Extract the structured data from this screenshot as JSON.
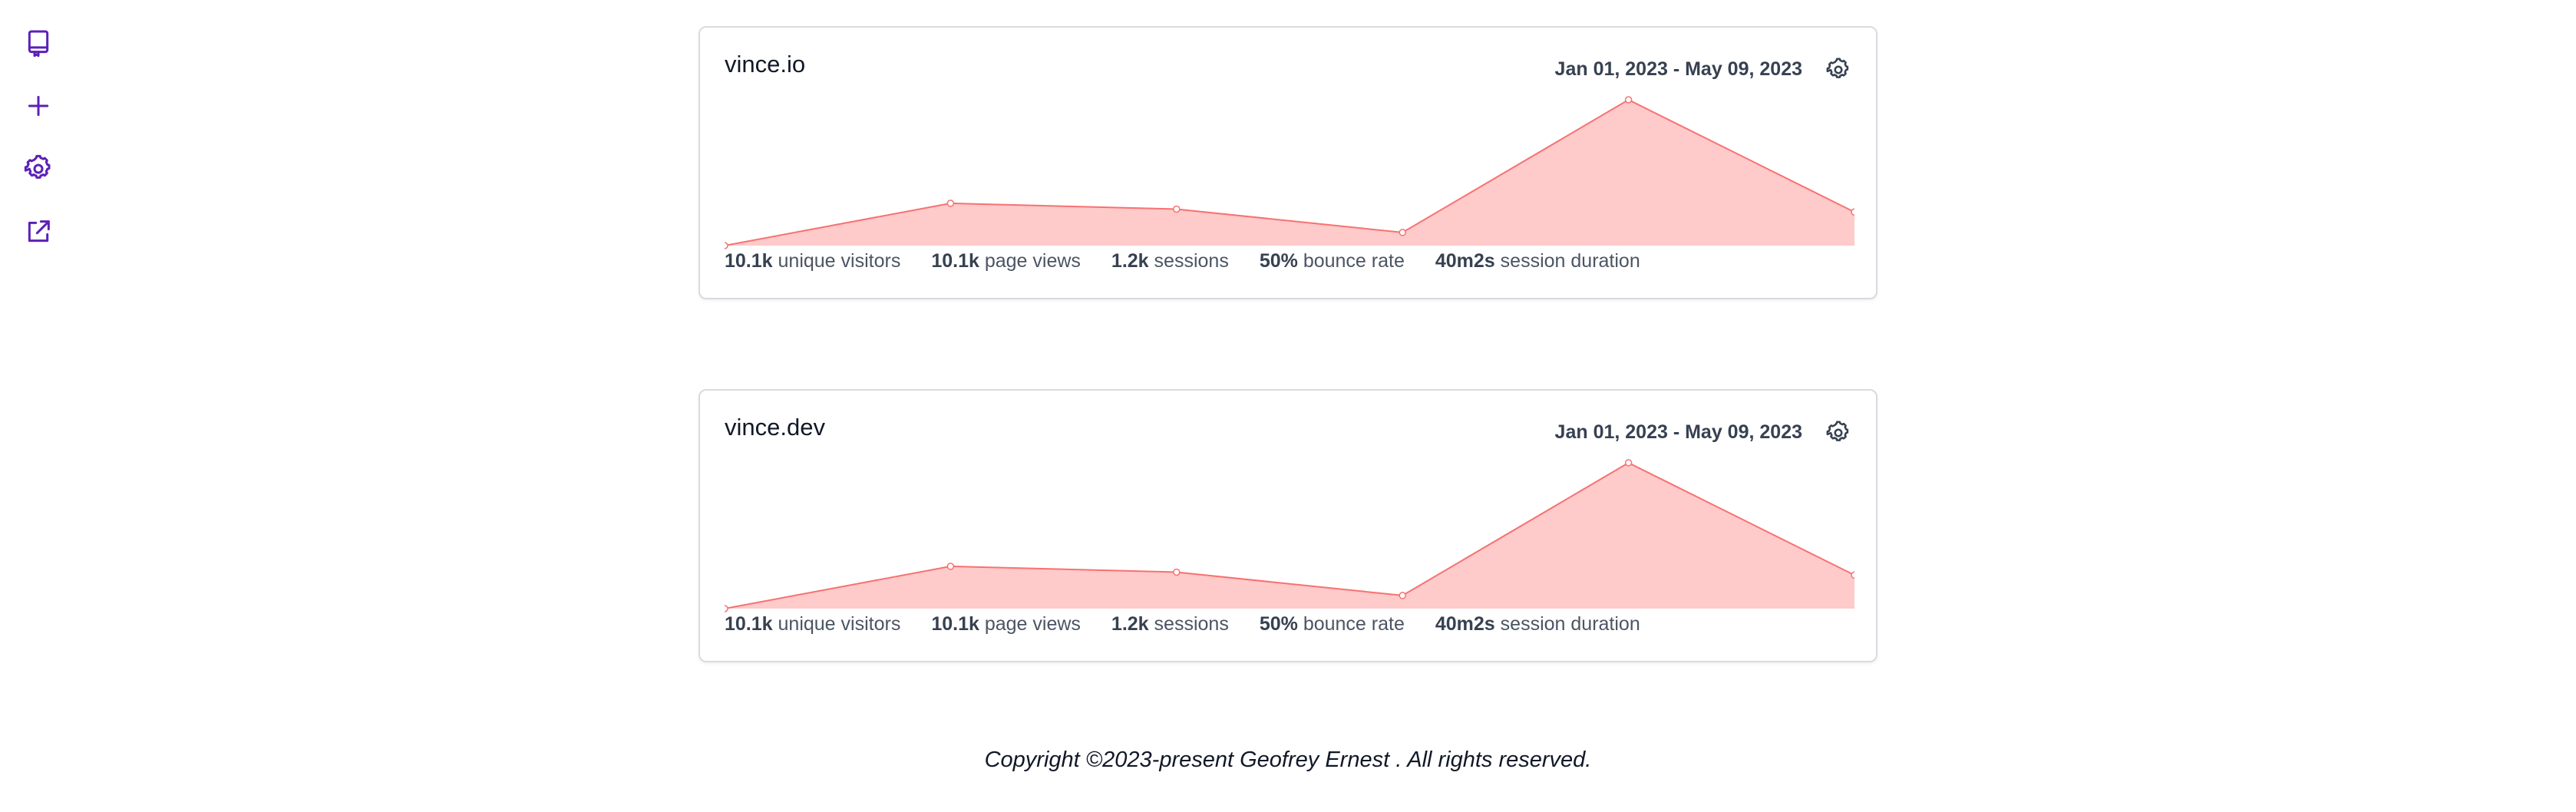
{
  "sidebar": {
    "items": [
      {
        "icon": "repository-icon"
      },
      {
        "icon": "plus-icon"
      },
      {
        "icon": "gear-icon"
      },
      {
        "icon": "external-link-icon"
      }
    ],
    "accent": "#5b21b6"
  },
  "sites": [
    {
      "name": "vince.io",
      "date_range": "Jan 01, 2023 - May 09, 2023",
      "stats": {
        "visitors_value": "10.1k",
        "visitors_label": "unique visitors",
        "pageviews_value": "10.1k",
        "pageviews_label": "page views",
        "sessions_value": "1.2k",
        "sessions_label": "sessions",
        "bounce_value": "50%",
        "bounce_label": "bounce rate",
        "duration_value": "40m2s",
        "duration_label": "session duration"
      }
    },
    {
      "name": "vince.dev",
      "date_range": "Jan 01, 2023 - May 09, 2023",
      "stats": {
        "visitors_value": "10.1k",
        "visitors_label": "unique visitors",
        "pageviews_value": "10.1k",
        "pageviews_label": "page views",
        "sessions_value": "1.2k",
        "sessions_label": "sessions",
        "bounce_value": "50%",
        "bounce_label": "bounce rate",
        "duration_value": "40m2s",
        "duration_label": "session duration"
      }
    }
  ],
  "chart_data": [
    {
      "type": "area",
      "values": [
        0,
        29,
        25,
        9,
        100,
        23
      ],
      "ylim": [
        0,
        100
      ],
      "fill": "#fecaca",
      "stroke": "#f87171"
    },
    {
      "type": "area",
      "values": [
        0,
        29,
        25,
        9,
        100,
        23
      ],
      "ylim": [
        0,
        100
      ],
      "fill": "#fecaca",
      "stroke": "#f87171"
    }
  ],
  "footer": {
    "text": "Copyright ©2023-present Geofrey Ernest . All rights reserved."
  }
}
